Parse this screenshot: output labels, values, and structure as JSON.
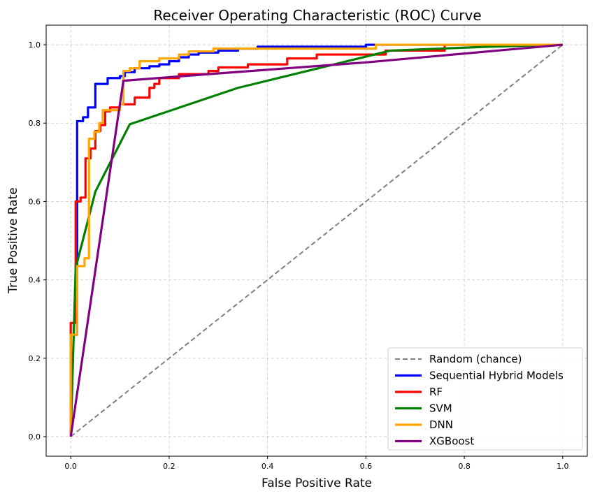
{
  "chart_data": {
    "type": "line",
    "title": "Receiver Operating Characteristic (ROC) Curve",
    "xlabel": "False Positive Rate",
    "ylabel": "True Positive Rate",
    "xlim": [
      -0.05,
      1.05
    ],
    "ylim": [
      -0.05,
      1.05
    ],
    "xticks": [
      "0.0",
      "0.2",
      "0.4",
      "0.6",
      "0.8",
      "1.0"
    ],
    "yticks": [
      "0.0",
      "0.2",
      "0.4",
      "0.6",
      "0.8",
      "1.0"
    ],
    "grid": true,
    "legend_position": "bottom-right",
    "series": [
      {
        "name": "Random (chance)",
        "color": "#808080",
        "dashed": true,
        "points": [
          [
            0,
            0
          ],
          [
            1,
            1
          ]
        ]
      },
      {
        "name": "Sequential Hybrid Models",
        "color": "#0000ff",
        "dashed": false,
        "points": [
          [
            0,
            0
          ],
          [
            0,
            0.26
          ],
          [
            0.013,
            0.26
          ],
          [
            0.013,
            0.805
          ],
          [
            0.025,
            0.805
          ],
          [
            0.025,
            0.815
          ],
          [
            0.035,
            0.815
          ],
          [
            0.035,
            0.84
          ],
          [
            0.05,
            0.84
          ],
          [
            0.05,
            0.9
          ],
          [
            0.075,
            0.9
          ],
          [
            0.075,
            0.915
          ],
          [
            0.1,
            0.915
          ],
          [
            0.1,
            0.92
          ],
          [
            0.11,
            0.92
          ],
          [
            0.11,
            0.93
          ],
          [
            0.13,
            0.93
          ],
          [
            0.13,
            0.94
          ],
          [
            0.16,
            0.94
          ],
          [
            0.16,
            0.945
          ],
          [
            0.18,
            0.945
          ],
          [
            0.18,
            0.95
          ],
          [
            0.2,
            0.95
          ],
          [
            0.2,
            0.958
          ],
          [
            0.22,
            0.958
          ],
          [
            0.22,
            0.968
          ],
          [
            0.24,
            0.968
          ],
          [
            0.24,
            0.975
          ],
          [
            0.26,
            0.975
          ],
          [
            0.26,
            0.98
          ],
          [
            0.3,
            0.98
          ],
          [
            0.3,
            0.985
          ],
          [
            0.34,
            0.985
          ],
          [
            0.34,
            0.99
          ],
          [
            0.38,
            0.99
          ],
          [
            0.38,
            0.995
          ],
          [
            0.6,
            0.995
          ],
          [
            0.6,
            1.0
          ],
          [
            1.0,
            1.0
          ]
        ]
      },
      {
        "name": "RF",
        "color": "#ff0000",
        "dashed": false,
        "points": [
          [
            0,
            0
          ],
          [
            0,
            0.29
          ],
          [
            0.01,
            0.29
          ],
          [
            0.01,
            0.6
          ],
          [
            0.02,
            0.6
          ],
          [
            0.02,
            0.61
          ],
          [
            0.03,
            0.61
          ],
          [
            0.03,
            0.71
          ],
          [
            0.04,
            0.71
          ],
          [
            0.04,
            0.735
          ],
          [
            0.05,
            0.735
          ],
          [
            0.05,
            0.78
          ],
          [
            0.06,
            0.78
          ],
          [
            0.06,
            0.795
          ],
          [
            0.07,
            0.795
          ],
          [
            0.07,
            0.83
          ],
          [
            0.08,
            0.83
          ],
          [
            0.08,
            0.84
          ],
          [
            0.1,
            0.84
          ],
          [
            0.1,
            0.848
          ],
          [
            0.13,
            0.848
          ],
          [
            0.13,
            0.865
          ],
          [
            0.16,
            0.865
          ],
          [
            0.16,
            0.89
          ],
          [
            0.17,
            0.89
          ],
          [
            0.17,
            0.9
          ],
          [
            0.18,
            0.9
          ],
          [
            0.18,
            0.915
          ],
          [
            0.22,
            0.915
          ],
          [
            0.22,
            0.925
          ],
          [
            0.28,
            0.925
          ],
          [
            0.28,
            0.933
          ],
          [
            0.3,
            0.933
          ],
          [
            0.3,
            0.942
          ],
          [
            0.36,
            0.942
          ],
          [
            0.36,
            0.95
          ],
          [
            0.44,
            0.95
          ],
          [
            0.44,
            0.965
          ],
          [
            0.5,
            0.965
          ],
          [
            0.5,
            0.975
          ],
          [
            0.64,
            0.975
          ],
          [
            0.64,
            0.985
          ],
          [
            0.76,
            0.985
          ],
          [
            0.76,
            1.0
          ],
          [
            1.0,
            1.0
          ]
        ]
      },
      {
        "name": "SVM",
        "color": "#008000",
        "dashed": false,
        "points": [
          [
            0,
            0
          ],
          [
            0.01,
            0.43
          ],
          [
            0.05,
            0.625
          ],
          [
            0.12,
            0.797
          ],
          [
            0.34,
            0.89
          ],
          [
            0.65,
            0.985
          ],
          [
            0.85,
            0.995
          ],
          [
            1.0,
            1.0
          ]
        ]
      },
      {
        "name": "DNN",
        "color": "#ffa500",
        "dashed": false,
        "points": [
          [
            0,
            0
          ],
          [
            0,
            0.26
          ],
          [
            0.013,
            0.26
          ],
          [
            0.013,
            0.435
          ],
          [
            0.028,
            0.435
          ],
          [
            0.028,
            0.455
          ],
          [
            0.037,
            0.455
          ],
          [
            0.037,
            0.76
          ],
          [
            0.048,
            0.76
          ],
          [
            0.048,
            0.778
          ],
          [
            0.058,
            0.778
          ],
          [
            0.058,
            0.8
          ],
          [
            0.065,
            0.8
          ],
          [
            0.065,
            0.833
          ],
          [
            0.1,
            0.833
          ],
          [
            0.1,
            0.848
          ],
          [
            0.107,
            0.848
          ],
          [
            0.107,
            0.933
          ],
          [
            0.12,
            0.933
          ],
          [
            0.12,
            0.94
          ],
          [
            0.14,
            0.94
          ],
          [
            0.14,
            0.958
          ],
          [
            0.18,
            0.958
          ],
          [
            0.18,
            0.965
          ],
          [
            0.22,
            0.965
          ],
          [
            0.22,
            0.975
          ],
          [
            0.24,
            0.975
          ],
          [
            0.24,
            0.983
          ],
          [
            0.29,
            0.983
          ],
          [
            0.29,
            0.99
          ],
          [
            0.62,
            0.99
          ],
          [
            0.62,
            1.0
          ],
          [
            1.0,
            1.0
          ]
        ]
      },
      {
        "name": "XGBoost",
        "color": "#800080",
        "dashed": false,
        "points": [
          [
            0,
            0
          ],
          [
            0.107,
            0.908
          ],
          [
            0.28,
            0.925
          ],
          [
            0.6,
            0.955
          ],
          [
            1.0,
            1.0
          ]
        ]
      }
    ]
  }
}
